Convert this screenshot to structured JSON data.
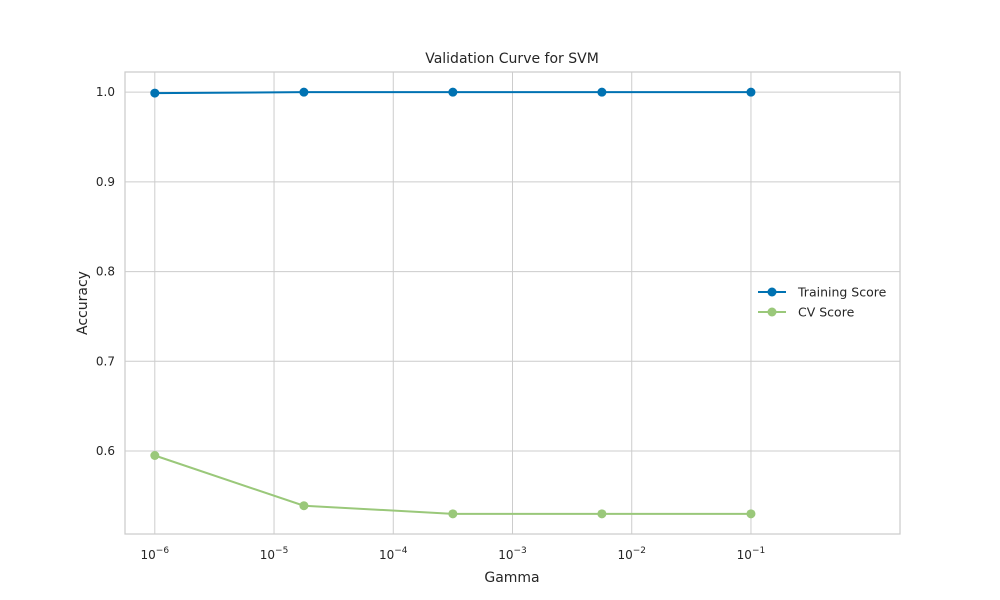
{
  "chart_data": {
    "type": "line",
    "title": "Validation Curve for SVM",
    "xlabel": "Gamma",
    "ylabel": "Accuracy",
    "x_scale": "log",
    "x": [
      1e-06,
      1.78e-05,
      0.000316,
      0.00562,
      0.1
    ],
    "xlim_log10": [
      -6.25,
      0.25
    ],
    "ylim": [
      0.5075,
      1.0225
    ],
    "x_ticks": [
      {
        "base": "10",
        "exp": "−6",
        "value": -6
      },
      {
        "base": "10",
        "exp": "−5",
        "value": -5
      },
      {
        "base": "10",
        "exp": "−4",
        "value": -4
      },
      {
        "base": "10",
        "exp": "−3",
        "value": -3
      },
      {
        "base": "10",
        "exp": "−2",
        "value": -2
      },
      {
        "base": "10",
        "exp": "−1",
        "value": -1
      }
    ],
    "y_ticks": [
      "0.6",
      "0.7",
      "0.8",
      "0.9",
      "1.0"
    ],
    "y_tick_values": [
      0.6,
      0.7,
      0.8,
      0.9,
      1.0
    ],
    "grid": true,
    "legend_position": "right",
    "series": [
      {
        "name": "Training Score",
        "color": "#0072b2",
        "values": [
          0.999,
          1.0,
          1.0,
          1.0,
          1.0
        ]
      },
      {
        "name": "CV Score",
        "color": "#9ac87a",
        "values": [
          0.595,
          0.539,
          0.53,
          0.53,
          0.53
        ]
      }
    ]
  }
}
